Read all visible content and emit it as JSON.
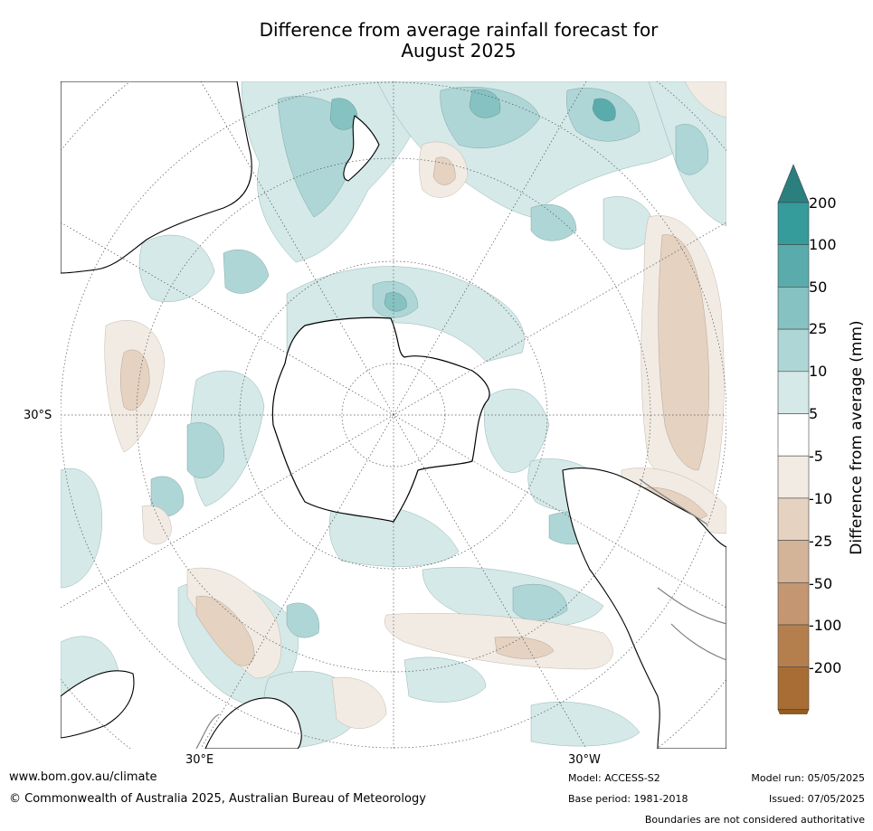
{
  "title_line1": "Difference from average rainfall forecast for",
  "title_line2": "August 2025",
  "map": {
    "axis_labels": {
      "lat": "30°S",
      "lon_east": "30°E",
      "lon_west": "30°W"
    },
    "colors": {
      "ocean": "#ffffff",
      "coast": "#000000",
      "border": "#808080",
      "grid": "#555555",
      "wet_5_10": "#d4e9e8",
      "wet_10_25": "#afd6d6",
      "wet_25_50": "#86c2c2",
      "wet_50_100": "#5aacac",
      "dry_5_10": "#f1ebe4",
      "dry_10_25": "#e5d2c1"
    }
  },
  "colorbar": {
    "label": "Difference from average (mm)",
    "ticks": [
      "200",
      "100",
      "50",
      "25",
      "10",
      "5",
      "-5",
      "-10",
      "-25",
      "-50",
      "-100",
      "-200"
    ],
    "colors": [
      "#2b7f7f",
      "#359b9b",
      "#5aacac",
      "#86c2c2",
      "#afd6d6",
      "#d4e9e8",
      "#ffffff",
      "#f1ebe4",
      "#e5d2c1",
      "#d3b498",
      "#c49772",
      "#b57f4d",
      "#a86d35",
      "#955c21"
    ]
  },
  "footer": {
    "url": "www.bom.gov.au/climate",
    "copyright": "© Commonwealth of Australia 2025, Australian Bureau of Meteorology",
    "model": "Model: ACCESS-S2",
    "base_period": "Base period: 1981-2018",
    "model_run": "Model run: 05/05/2025",
    "issued": "Issued: 07/05/2025",
    "boundaries": "Boundaries are not considered authoritative"
  }
}
